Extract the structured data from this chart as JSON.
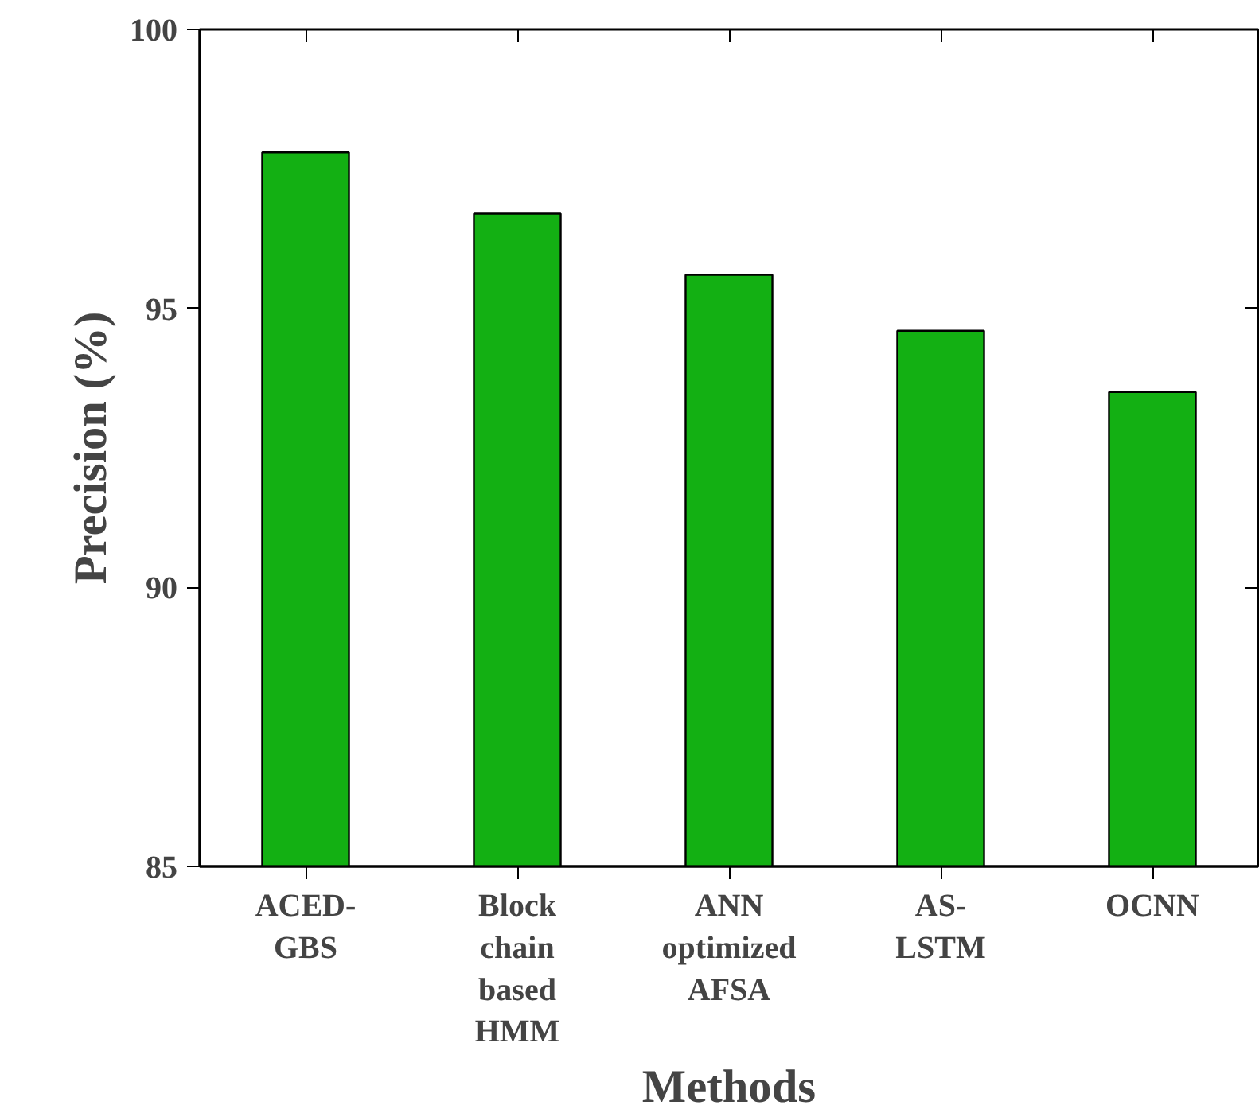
{
  "chart_data": {
    "type": "bar",
    "xlabel": "Methods",
    "ylabel": "Precision (%)",
    "categories": [
      "ACED-\nGBS",
      "Block\nchain\nbased\nHMM",
      "ANN\noptimized\nAFSA",
      "AS-\nLSTM",
      "OCNN"
    ],
    "values": [
      97.8,
      96.7,
      95.6,
      94.6,
      93.5
    ],
    "color": "#13b013",
    "ylim": [
      85,
      100
    ],
    "yticks": [
      85,
      90,
      95,
      100
    ],
    "grid": false
  }
}
